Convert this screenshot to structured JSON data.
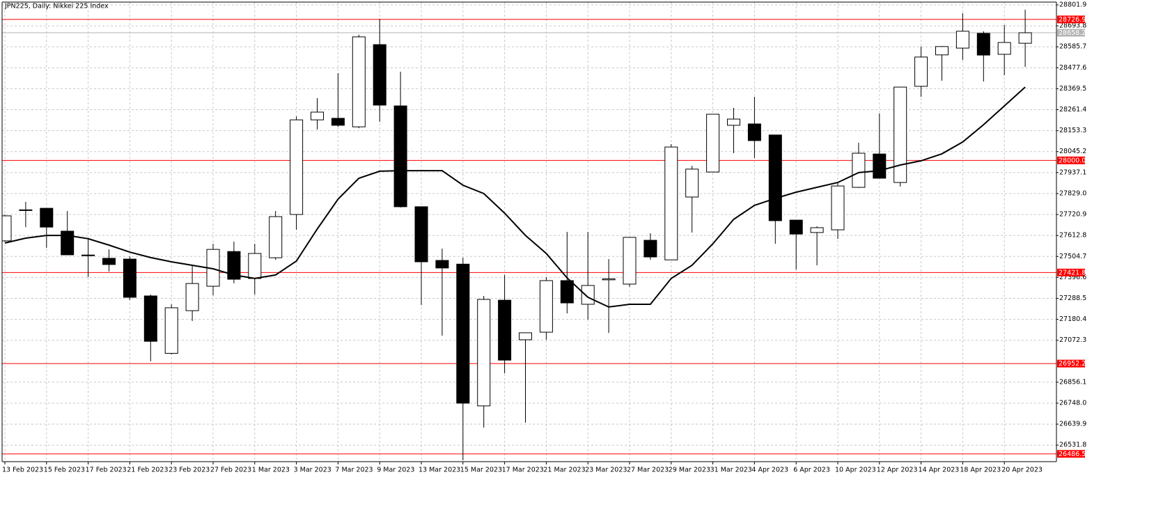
{
  "chart_data": {
    "type": "candlestick",
    "title": "JPN225, Daily:  Nikkei 225 Index",
    "categories": [
      "13 Feb 2023",
      null,
      "15 Feb 2023",
      null,
      "17 Feb 2023",
      null,
      "21 Feb 2023",
      null,
      "23 Feb 2023",
      null,
      "27 Feb 2023",
      null,
      "1 Mar 2023",
      null,
      "3 Mar 2023",
      null,
      "7 Mar 2023",
      null,
      "9 Mar 2023",
      null,
      "13 Mar 2023",
      null,
      "15 Mar 2023",
      null,
      "17 Mar 2023",
      null,
      "21 Mar 2023",
      null,
      "23 Mar 2023",
      null,
      "27 Mar 2023",
      null,
      "29 Mar 2023",
      null,
      "31 Mar 2023",
      null,
      "4 Apr 2023",
      null,
      "6 Apr 2023",
      null,
      "10 Apr 2023",
      null,
      "12 Apr 2023",
      null,
      "14 Apr 2023",
      null,
      "18 Apr 2023",
      null,
      "20 Apr 2023",
      null
    ],
    "open": [
      27585,
      27742,
      27753,
      27635,
      27512,
      27495,
      27491,
      27301,
      27005,
      27225,
      27351,
      27530,
      27391,
      27498,
      27721,
      28209,
      28217,
      28173,
      28597,
      28281,
      27761,
      27484,
      27465,
      26734,
      27279,
      27075,
      27114,
      27380,
      27258,
      27384,
      27362,
      27588,
      27487,
      27811,
      27940,
      28181,
      28188,
      28131,
      27692,
      27628,
      27642,
      27861,
      28033,
      27886,
      28382,
      28544,
      28579,
      28655,
      28547,
      28604
    ],
    "high": [
      27720,
      27786,
      27753,
      27739,
      27595,
      27541,
      27505,
      27308,
      27258,
      27462,
      27570,
      27581,
      27570,
      27739,
      28227,
      28321,
      28450,
      28648,
      28730,
      28457,
      27761,
      27545,
      27498,
      27301,
      27409,
      27111,
      27398,
      27631,
      27631,
      27491,
      27603,
      27624,
      28084,
      27972,
      28238,
      28271,
      28328,
      28131,
      27692,
      27660,
      27883,
      28091,
      28242,
      28378,
      28587,
      28590,
      28759,
      28666,
      28698,
      28777
    ],
    "low": [
      27580,
      27656,
      27549,
      27513,
      27398,
      27427,
      27280,
      26964,
      27000,
      27172,
      27304,
      27366,
      27308,
      27487,
      27642,
      28159,
      28173,
      28166,
      28199,
      27757,
      27254,
      27096,
      26454,
      26622,
      26902,
      26648,
      27075,
      27211,
      27179,
      27110,
      27348,
      27487,
      27487,
      27628,
      27940,
      28037,
      28012,
      27570,
      27437,
      27459,
      27595,
      27858,
      27908,
      27865,
      28328,
      28411,
      28518,
      28407,
      28439,
      28482
    ],
    "close": [
      27714,
      27745,
      27656,
      27513,
      27510,
      27463,
      27294,
      27067,
      27240,
      27365,
      27541,
      27387,
      27520,
      27710,
      28209,
      28249,
      28181,
      28637,
      28285,
      27761,
      27477,
      27445,
      26748,
      27283,
      26970,
      27111,
      27380,
      27265,
      27355,
      27389,
      27603,
      27502,
      28069,
      27955,
      28238,
      28213,
      28102,
      27689,
      27620,
      27653,
      27868,
      28037,
      27908,
      28378,
      28533,
      28587,
      28666,
      28543,
      28608,
      28658.2
    ],
    "up_color": "#ffffff",
    "down_color": "#000000",
    "moving_average": {
      "color": "#000000",
      "values": [
        27574,
        27599,
        27613,
        27613,
        27596,
        27563,
        27527,
        27499,
        27477,
        27459,
        27441,
        27409,
        27391,
        27409,
        27481,
        27646,
        27800,
        27908,
        27944,
        27947,
        27947,
        27947,
        27872,
        27829,
        27728,
        27613,
        27520,
        27394,
        27294,
        27244,
        27258,
        27258,
        27391,
        27459,
        27570,
        27696,
        27768,
        27804,
        27836,
        27861,
        27886,
        27937,
        27947,
        27976,
        27998,
        28034,
        28095,
        28184,
        28281,
        28378
      ]
    },
    "hlines": [
      {
        "value": 28726.9,
        "label": "28726.9",
        "color": "#ff0000"
      },
      {
        "value": 28000.0,
        "label": "28000.0",
        "color": "#ff0000"
      },
      {
        "value": 27421.8,
        "label": "27421.8",
        "color": "#ff0000"
      },
      {
        "value": 26952.2,
        "label": "26952.2",
        "color": "#ff0000"
      },
      {
        "value": 26486.5,
        "label": "26486.5",
        "color": "#ff0000"
      },
      {
        "value": 28658.2,
        "label": "28658.2",
        "color": "#b4b4b4"
      }
    ],
    "ylim": [
      26446.4,
      28816.3
    ],
    "yticks": [
      28801.9,
      28693.8,
      28585.7,
      28477.6,
      28369.5,
      28261.4,
      28153.3,
      28045.2,
      27937.1,
      {
        "value": 27829.0,
        "label": "27829.0"
      },
      27720.9,
      27612.8,
      27504.7,
      27396.6,
      27288.5,
      27180.4,
      27072.3,
      26856.1,
      {
        "value": 26748.0,
        "label": "26748.0"
      },
      26639.9,
      26531.8
    ],
    "grid": true
  }
}
